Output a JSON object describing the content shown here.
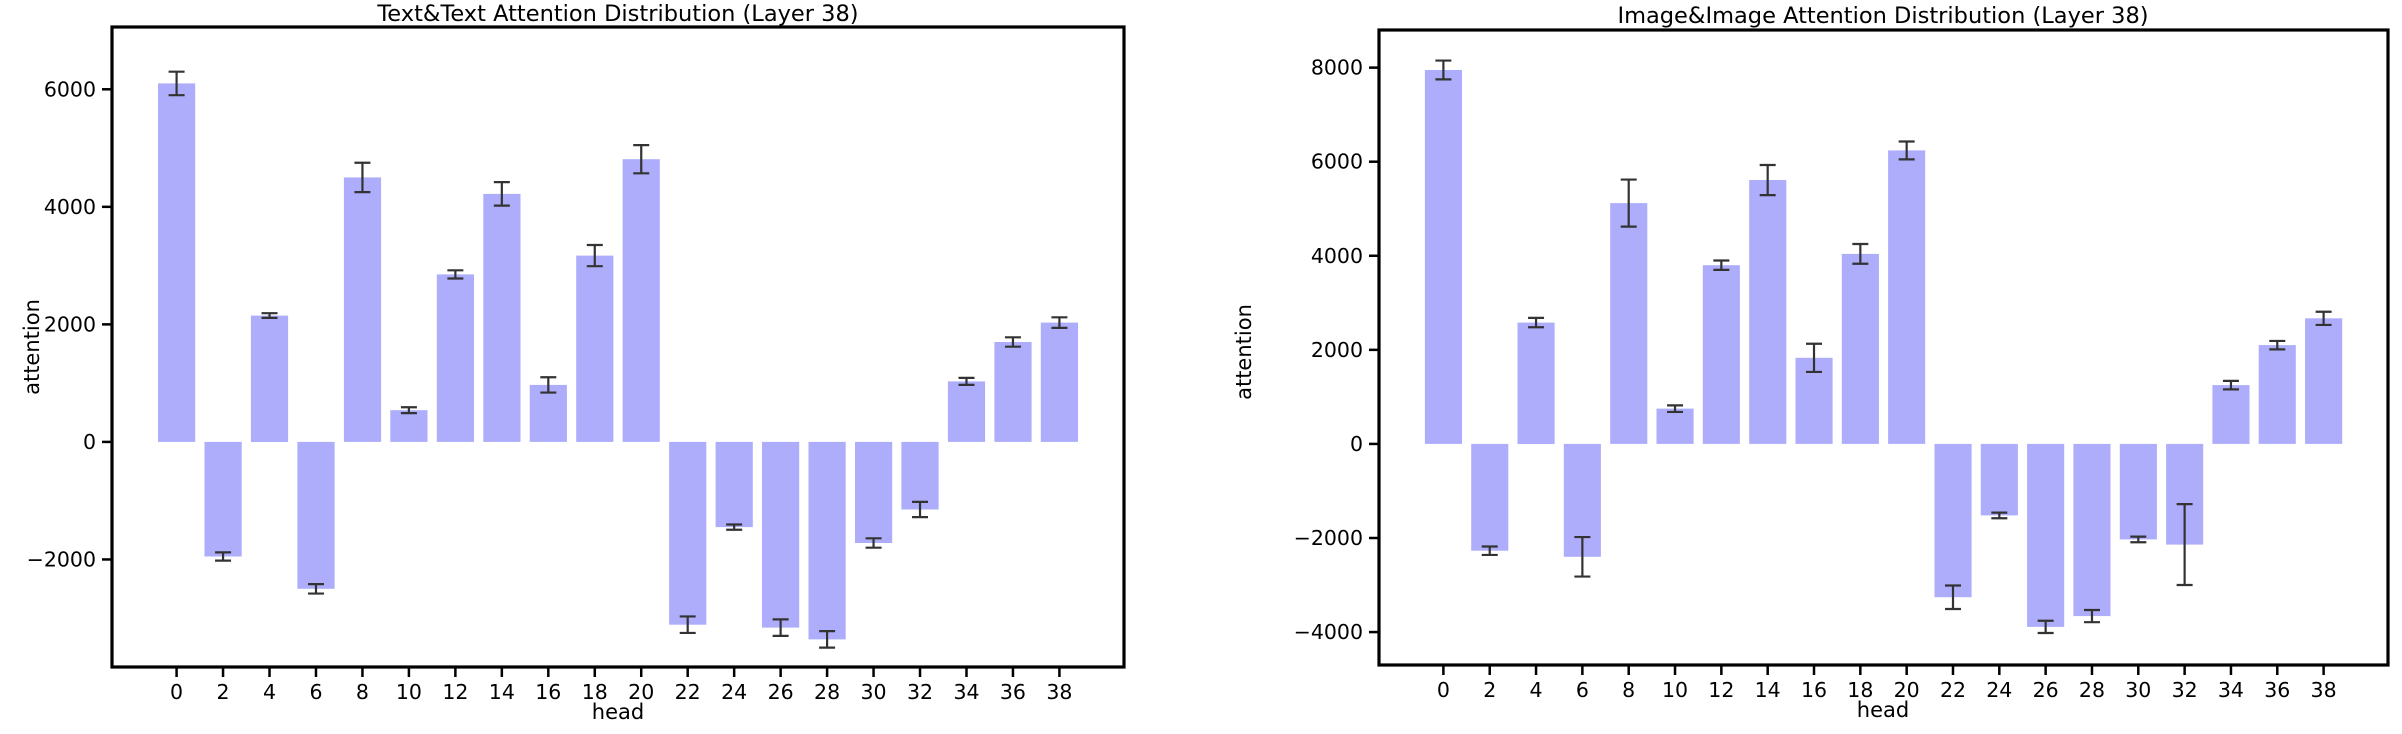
{
  "figure": {
    "background": "#ffffff",
    "bar_color": "#adadfb",
    "error_color": "#333333",
    "axis_color": "#000000"
  },
  "chart_data": [
    {
      "type": "bar",
      "title": "Text&Text Attention Distribution (Layer 38)",
      "xlabel": "head",
      "ylabel": "attention",
      "legend": "none",
      "grid": false,
      "categories": [
        "0",
        "2",
        "4",
        "6",
        "8",
        "10",
        "12",
        "14",
        "16",
        "18",
        "20",
        "22",
        "24",
        "26",
        "28",
        "30",
        "32",
        "34",
        "36",
        "38"
      ],
      "values": [
        6100,
        -1950,
        2150,
        -2500,
        4500,
        540,
        2850,
        4220,
        970,
        3170,
        4810,
        -3110,
        -1450,
        -3160,
        -3360,
        -1720,
        -1150,
        1030,
        1700,
        2030
      ],
      "errors": [
        200,
        70,
        40,
        80,
        250,
        50,
        70,
        200,
        130,
        180,
        240,
        140,
        45,
        140,
        140,
        80,
        130,
        60,
        80,
        90
      ],
      "yticks": [
        6000,
        4000,
        2000,
        0,
        -2000
      ],
      "ylim": [
        -3830,
        7060
      ]
    },
    {
      "type": "bar",
      "title": "Image&Image Attention Distribution (Layer 38)",
      "xlabel": "head",
      "ylabel": "attention",
      "legend": "none",
      "grid": false,
      "categories": [
        "0",
        "2",
        "4",
        "6",
        "8",
        "10",
        "12",
        "14",
        "16",
        "18",
        "20",
        "22",
        "24",
        "26",
        "28",
        "30",
        "32",
        "34",
        "36",
        "38"
      ],
      "values": [
        7950,
        -2270,
        2580,
        -2400,
        5120,
        750,
        3800,
        5610,
        1830,
        4040,
        6240,
        -3260,
        -1520,
        -3890,
        -3660,
        -2030,
        -2140,
        1250,
        2100,
        2670
      ],
      "errors": [
        200,
        90,
        100,
        420,
        500,
        70,
        100,
        320,
        300,
        210,
        190,
        250,
        60,
        130,
        130,
        60,
        860,
        90,
        90,
        140
      ],
      "yticks": [
        8000,
        6000,
        4000,
        2000,
        0,
        -2000,
        -4000
      ],
      "ylim": [
        -4700,
        8800
      ]
    }
  ]
}
